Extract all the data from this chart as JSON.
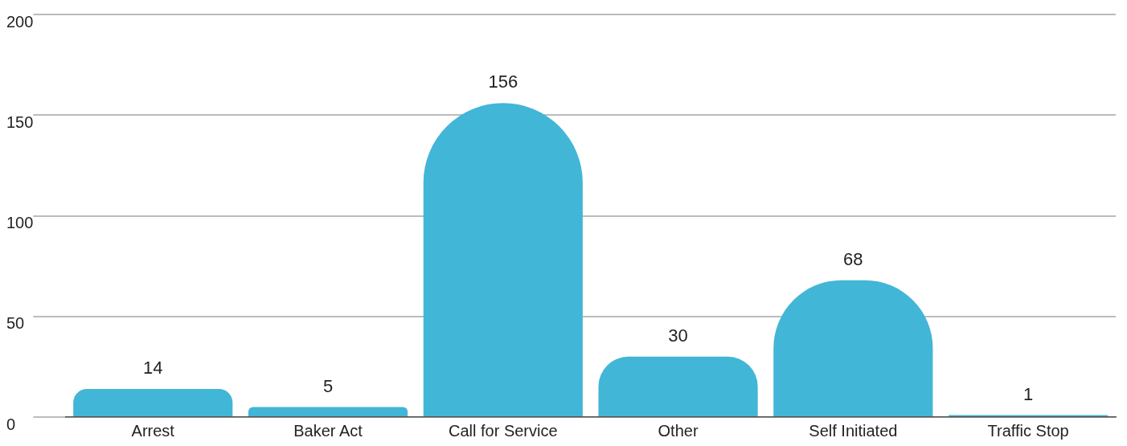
{
  "chart_data": {
    "type": "bar",
    "categories": [
      "Arrest",
      "Baker Act",
      "Call for Service",
      "Other",
      "Self Initiated",
      "Traffic Stop"
    ],
    "values": [
      14,
      5,
      156,
      30,
      68,
      1
    ],
    "color": "#42b6d6",
    "ylim": [
      0,
      200
    ],
    "yticks": [
      0,
      50,
      100,
      150,
      200
    ],
    "grid": "y",
    "data_labels": true,
    "legend": false
  }
}
